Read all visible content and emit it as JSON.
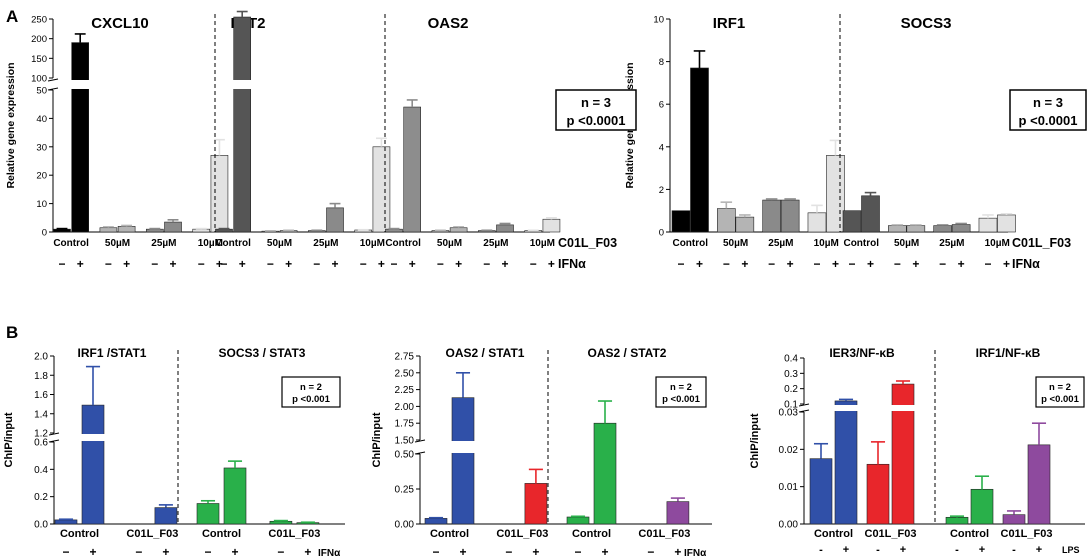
{
  "figure": {
    "panel_labels": [
      "A",
      "B"
    ],
    "stat_boxes": {
      "A1": {
        "n": "n = 3",
        "p": "p <0.0001"
      },
      "A2": {
        "n": "n = 3",
        "p": "p <0.0001"
      },
      "B1": {
        "n": "n = 2",
        "p": "p <0.001"
      },
      "B2": {
        "n": "n = 2",
        "p": "p <0.001"
      },
      "B3": {
        "n": "n = 2",
        "p": "p <0.001"
      }
    }
  },
  "chart_data": [
    {
      "id": "A1",
      "type": "bar",
      "ylabel": "Relative gene expression",
      "ylim": [
        0,
        250
      ],
      "y_break": [
        50,
        100
      ],
      "yticks": [
        0,
        10,
        20,
        30,
        40,
        50,
        100,
        150,
        200,
        250
      ],
      "groups": [
        "CXCL10",
        "IFIT2",
        "OAS2"
      ],
      "conditions": [
        "Control",
        "50µM",
        "25µM",
        "10µM"
      ],
      "compound_label": "C01L_F03",
      "treatment_label": "IFNα",
      "pm_labels": [
        "−",
        "+",
        "−",
        "+",
        "−",
        "+",
        "−",
        "+"
      ],
      "series": [
        {
          "name": "CXCL10",
          "values": [
            1,
            190,
            1.5,
            2,
            1,
            3.5,
            1,
            27
          ],
          "errors": [
            0.2,
            22,
            0.3,
            0.3,
            0.2,
            0.8,
            0.2,
            5.5
          ]
        },
        {
          "name": "IFIT2",
          "values": [
            1,
            255,
            0.3,
            0.5,
            0.5,
            8.5,
            0.7,
            30
          ],
          "errors": [
            0.2,
            14,
            0.1,
            0.1,
            0.1,
            1.5,
            0.1,
            3
          ]
        },
        {
          "name": "OAS2",
          "values": [
            1,
            44,
            0.5,
            1.5,
            0.5,
            2.5,
            0.5,
            4.5
          ],
          "errors": [
            0.2,
            2.5,
            0.1,
            0.3,
            0.1,
            0.5,
            0.1,
            0.5
          ]
        }
      ]
    },
    {
      "id": "A2",
      "type": "bar",
      "ylabel": "Relative gene expression",
      "ylim": [
        0,
        10
      ],
      "yticks": [
        0,
        2,
        4,
        6,
        8,
        10
      ],
      "groups": [
        "IRF1",
        "SOCS3"
      ],
      "conditions": [
        "Control",
        "50µM",
        "25µM",
        "10µM"
      ],
      "compound_label": "C01L_F03",
      "treatment_label": "IFNα",
      "pm_labels": [
        "−",
        "+",
        "−",
        "+",
        "−",
        "+",
        "−",
        "+"
      ],
      "series": [
        {
          "name": "IRF1",
          "values": [
            1,
            7.7,
            1.1,
            0.7,
            1.5,
            1.5,
            0.9,
            3.6
          ],
          "errors": [
            0,
            0.8,
            0.3,
            0.1,
            0.05,
            0.05,
            0.35,
            0.7
          ]
        },
        {
          "name": "SOCS3",
          "values": [
            1,
            1.7,
            0.3,
            0.3,
            0.3,
            0.35,
            0.65,
            0.8
          ],
          "errors": [
            0,
            0.15,
            0.03,
            0.03,
            0.03,
            0.05,
            0.15,
            0.05
          ]
        }
      ]
    },
    {
      "id": "B1",
      "type": "bar",
      "ylabel": "ChIP/input",
      "ylim": [
        0,
        2.0
      ],
      "y_break": [
        0.6,
        1.2
      ],
      "yticks": [
        0.0,
        0.2,
        0.4,
        0.6,
        1.2,
        1.4,
        1.6,
        1.8,
        2.0
      ],
      "ytick_labels": [
        "0.0",
        "0.2",
        "0.4",
        "0.6",
        "1.2",
        "1.4",
        "1.6",
        "1.8",
        "2.0"
      ],
      "groups": [
        "IRF1 /STAT1",
        "SOCS3 / STAT3"
      ],
      "conditions": [
        "Control",
        "C01L_F03"
      ],
      "treatment_label": "IFNα",
      "pm_labels": [
        "−",
        "+",
        "−",
        "+"
      ],
      "series": [
        {
          "name": "IRF1 /STAT1",
          "color": "#3050a8",
          "values": [
            0.03,
            1.49,
            0.0,
            0.12
          ],
          "errors": [
            0.005,
            0.4,
            0.0,
            0.02
          ]
        },
        {
          "name": "SOCS3 / STAT3",
          "color": "#29b04a",
          "values": [
            0.15,
            0.41,
            0.02,
            0.01
          ],
          "errors": [
            0.02,
            0.05,
            0.005,
            0.003
          ]
        }
      ]
    },
    {
      "id": "B2",
      "type": "bar",
      "ylabel": "ChIP/input",
      "ylim": [
        0,
        2.75
      ],
      "y_break": [
        0.5,
        1.5
      ],
      "yticks": [
        0.0,
        0.25,
        0.5,
        1.5,
        1.75,
        2.0,
        2.25,
        2.5,
        2.75
      ],
      "ytick_labels": [
        "0.00",
        "0.25",
        "0.50",
        "1.50",
        "1.75",
        "2.00",
        "2.25",
        "2.50",
        "2.75"
      ],
      "groups": [
        "OAS2 / STAT1",
        "OAS2 / STAT2"
      ],
      "conditions": [
        "Control",
        "C01L_F03"
      ],
      "treatment_label": "IFNα",
      "pm_labels": [
        "−",
        "+",
        "−",
        "+"
      ],
      "series": [
        {
          "name": "OAS2 / STAT1",
          "colors": [
            "#3050a8",
            "#3050a8",
            "#e8262b",
            "#e8262b"
          ],
          "values": [
            0.04,
            2.13,
            0.0,
            0.29
          ],
          "errors": [
            0.005,
            0.37,
            0.0,
            0.1
          ]
        },
        {
          "name": "OAS2 / STAT2",
          "colors": [
            "#29b04a",
            "#29b04a",
            "#8e4a9e",
            "#8e4a9e"
          ],
          "values": [
            0.05,
            1.75,
            0.0,
            0.16
          ],
          "errors": [
            0.005,
            0.33,
            0.0,
            0.025
          ]
        }
      ]
    },
    {
      "id": "B3",
      "type": "bar",
      "ylabel": "ChIP/input",
      "ylim": [
        0,
        0.4
      ],
      "y_break": [
        0.03,
        0.1
      ],
      "yticks": [
        0.0,
        0.01,
        0.02,
        0.03,
        0.1,
        0.2,
        0.3,
        0.4
      ],
      "ytick_labels": [
        "0.00",
        "0.01",
        "0.02",
        "0.03",
        "0.1",
        "0.2",
        "0.3",
        "0.4"
      ],
      "groups": [
        "IER3/NF-κB",
        "IRF1/NF-κB"
      ],
      "conditions": [
        "Control",
        "C01L_F03"
      ],
      "treatment_label": "LPS",
      "pm_labels": [
        "-",
        "+",
        "-",
        "+"
      ],
      "series": [
        {
          "name": "IER3/NF-κB",
          "colors": [
            "#3050a8",
            "#3050a8",
            "#e8262b",
            "#e8262b"
          ],
          "values": [
            0.0175,
            0.12,
            0.016,
            0.23
          ],
          "errors": [
            0.004,
            0.01,
            0.006,
            0.02
          ]
        },
        {
          "name": "IRF1/NF-κB",
          "colors": [
            "#29b04a",
            "#29b04a",
            "#8e4a9e",
            "#8e4a9e"
          ],
          "values": [
            0.0018,
            0.0093,
            0.0025,
            0.0212
          ],
          "errors": [
            0.0003,
            0.0035,
            0.001,
            0.0058
          ]
        }
      ]
    }
  ]
}
